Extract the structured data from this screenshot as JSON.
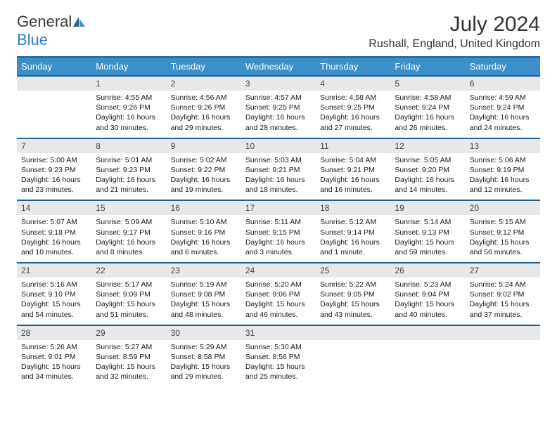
{
  "logo": {
    "word1": "General",
    "word2": "Blue"
  },
  "title": "July 2024",
  "location": "Rushall, England, United Kingdom",
  "colors": {
    "header_bg": "#3d8fc9",
    "header_border": "#1f5f94",
    "date_row_bg": "#e8e8e8",
    "text": "#1a1a1a"
  },
  "day_headers": [
    "Sunday",
    "Monday",
    "Tuesday",
    "Wednesday",
    "Thursday",
    "Friday",
    "Saturday"
  ],
  "weeks": [
    {
      "dates": [
        "",
        "1",
        "2",
        "3",
        "4",
        "5",
        "6"
      ],
      "cells": [
        null,
        {
          "sunrise": "Sunrise: 4:55 AM",
          "sunset": "Sunset: 9:26 PM",
          "day1": "Daylight: 16 hours",
          "day2": "and 30 minutes."
        },
        {
          "sunrise": "Sunrise: 4:56 AM",
          "sunset": "Sunset: 9:26 PM",
          "day1": "Daylight: 16 hours",
          "day2": "and 29 minutes."
        },
        {
          "sunrise": "Sunrise: 4:57 AM",
          "sunset": "Sunset: 9:25 PM",
          "day1": "Daylight: 16 hours",
          "day2": "and 28 minutes."
        },
        {
          "sunrise": "Sunrise: 4:58 AM",
          "sunset": "Sunset: 9:25 PM",
          "day1": "Daylight: 16 hours",
          "day2": "and 27 minutes."
        },
        {
          "sunrise": "Sunrise: 4:58 AM",
          "sunset": "Sunset: 9:24 PM",
          "day1": "Daylight: 16 hours",
          "day2": "and 26 minutes."
        },
        {
          "sunrise": "Sunrise: 4:59 AM",
          "sunset": "Sunset: 9:24 PM",
          "day1": "Daylight: 16 hours",
          "day2": "and 24 minutes."
        }
      ]
    },
    {
      "dates": [
        "7",
        "8",
        "9",
        "10",
        "11",
        "12",
        "13"
      ],
      "cells": [
        {
          "sunrise": "Sunrise: 5:00 AM",
          "sunset": "Sunset: 9:23 PM",
          "day1": "Daylight: 16 hours",
          "day2": "and 23 minutes."
        },
        {
          "sunrise": "Sunrise: 5:01 AM",
          "sunset": "Sunset: 9:23 PM",
          "day1": "Daylight: 16 hours",
          "day2": "and 21 minutes."
        },
        {
          "sunrise": "Sunrise: 5:02 AM",
          "sunset": "Sunset: 9:22 PM",
          "day1": "Daylight: 16 hours",
          "day2": "and 19 minutes."
        },
        {
          "sunrise": "Sunrise: 5:03 AM",
          "sunset": "Sunset: 9:21 PM",
          "day1": "Daylight: 16 hours",
          "day2": "and 18 minutes."
        },
        {
          "sunrise": "Sunrise: 5:04 AM",
          "sunset": "Sunset: 9:21 PM",
          "day1": "Daylight: 16 hours",
          "day2": "and 16 minutes."
        },
        {
          "sunrise": "Sunrise: 5:05 AM",
          "sunset": "Sunset: 9:20 PM",
          "day1": "Daylight: 16 hours",
          "day2": "and 14 minutes."
        },
        {
          "sunrise": "Sunrise: 5:06 AM",
          "sunset": "Sunset: 9:19 PM",
          "day1": "Daylight: 16 hours",
          "day2": "and 12 minutes."
        }
      ]
    },
    {
      "dates": [
        "14",
        "15",
        "16",
        "17",
        "18",
        "19",
        "20"
      ],
      "cells": [
        {
          "sunrise": "Sunrise: 5:07 AM",
          "sunset": "Sunset: 9:18 PM",
          "day1": "Daylight: 16 hours",
          "day2": "and 10 minutes."
        },
        {
          "sunrise": "Sunrise: 5:09 AM",
          "sunset": "Sunset: 9:17 PM",
          "day1": "Daylight: 16 hours",
          "day2": "and 8 minutes."
        },
        {
          "sunrise": "Sunrise: 5:10 AM",
          "sunset": "Sunset: 9:16 PM",
          "day1": "Daylight: 16 hours",
          "day2": "and 6 minutes."
        },
        {
          "sunrise": "Sunrise: 5:11 AM",
          "sunset": "Sunset: 9:15 PM",
          "day1": "Daylight: 16 hours",
          "day2": "and 3 minutes."
        },
        {
          "sunrise": "Sunrise: 5:12 AM",
          "sunset": "Sunset: 9:14 PM",
          "day1": "Daylight: 16 hours",
          "day2": "and 1 minute."
        },
        {
          "sunrise": "Sunrise: 5:14 AM",
          "sunset": "Sunset: 9:13 PM",
          "day1": "Daylight: 15 hours",
          "day2": "and 59 minutes."
        },
        {
          "sunrise": "Sunrise: 5:15 AM",
          "sunset": "Sunset: 9:12 PM",
          "day1": "Daylight: 15 hours",
          "day2": "and 56 minutes."
        }
      ]
    },
    {
      "dates": [
        "21",
        "22",
        "23",
        "24",
        "25",
        "26",
        "27"
      ],
      "cells": [
        {
          "sunrise": "Sunrise: 5:16 AM",
          "sunset": "Sunset: 9:10 PM",
          "day1": "Daylight: 15 hours",
          "day2": "and 54 minutes."
        },
        {
          "sunrise": "Sunrise: 5:17 AM",
          "sunset": "Sunset: 9:09 PM",
          "day1": "Daylight: 15 hours",
          "day2": "and 51 minutes."
        },
        {
          "sunrise": "Sunrise: 5:19 AM",
          "sunset": "Sunset: 9:08 PM",
          "day1": "Daylight: 15 hours",
          "day2": "and 48 minutes."
        },
        {
          "sunrise": "Sunrise: 5:20 AM",
          "sunset": "Sunset: 9:06 PM",
          "day1": "Daylight: 15 hours",
          "day2": "and 46 minutes."
        },
        {
          "sunrise": "Sunrise: 5:22 AM",
          "sunset": "Sunset: 9:05 PM",
          "day1": "Daylight: 15 hours",
          "day2": "and 43 minutes."
        },
        {
          "sunrise": "Sunrise: 5:23 AM",
          "sunset": "Sunset: 9:04 PM",
          "day1": "Daylight: 15 hours",
          "day2": "and 40 minutes."
        },
        {
          "sunrise": "Sunrise: 5:24 AM",
          "sunset": "Sunset: 9:02 PM",
          "day1": "Daylight: 15 hours",
          "day2": "and 37 minutes."
        }
      ]
    },
    {
      "dates": [
        "28",
        "29",
        "30",
        "31",
        "",
        "",
        ""
      ],
      "cells": [
        {
          "sunrise": "Sunrise: 5:26 AM",
          "sunset": "Sunset: 9:01 PM",
          "day1": "Daylight: 15 hours",
          "day2": "and 34 minutes."
        },
        {
          "sunrise": "Sunrise: 5:27 AM",
          "sunset": "Sunset: 8:59 PM",
          "day1": "Daylight: 15 hours",
          "day2": "and 32 minutes."
        },
        {
          "sunrise": "Sunrise: 5:29 AM",
          "sunset": "Sunset: 8:58 PM",
          "day1": "Daylight: 15 hours",
          "day2": "and 29 minutes."
        },
        {
          "sunrise": "Sunrise: 5:30 AM",
          "sunset": "Sunset: 8:56 PM",
          "day1": "Daylight: 15 hours",
          "day2": "and 25 minutes."
        },
        null,
        null,
        null
      ]
    }
  ]
}
